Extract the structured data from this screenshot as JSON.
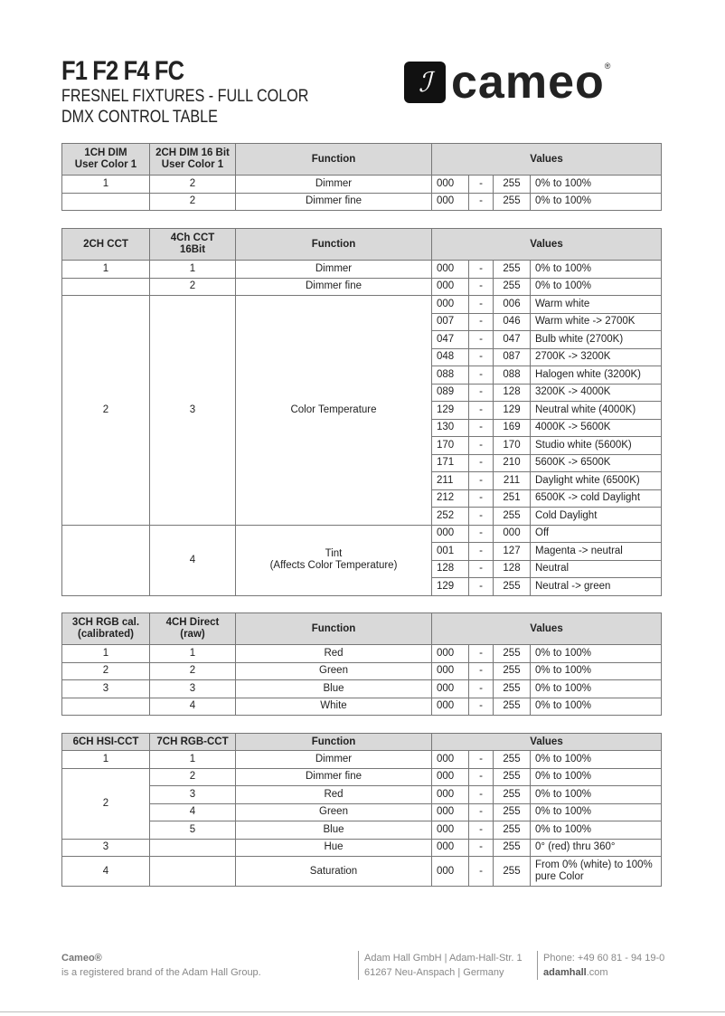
{
  "header": {
    "title": "F1 F2 F4 FC",
    "subtitle1": "FRESNEL FIXTURES - FULL COLOR",
    "subtitle2": "DMX CONTROL TABLE",
    "logo_text": "cameo"
  },
  "tables": [
    {
      "headers": [
        "1CH DIM\nUser Color 1",
        "2CH DIM 16 Bit\nUser Color 1",
        "Function",
        "Values"
      ],
      "rows": [
        {
          "c1": "1",
          "c2": "2",
          "fn": "Dimmer",
          "from": "000",
          "to": "255",
          "desc": "0% to 100%"
        },
        {
          "c1": "",
          "c2": "2",
          "fn": "Dimmer fine",
          "from": "000",
          "to": "255",
          "desc": "0% to 100%"
        }
      ]
    },
    {
      "headers": [
        "2CH CCT",
        "4Ch CCT\n16Bit",
        "Function",
        "Values"
      ],
      "rows": [
        {
          "c1": "1",
          "c2": "1",
          "fn": "Dimmer",
          "from": "000",
          "to": "255",
          "desc": "0% to 100%"
        },
        {
          "c1": "",
          "c2": "2",
          "fn": "Dimmer fine",
          "from": "000",
          "to": "255",
          "desc": "0% to 100%"
        },
        {
          "c1": "2",
          "c2": "3",
          "fn": "Color Temperature",
          "span": 13,
          "from": "000",
          "to": "006",
          "desc": "Warm white"
        },
        {
          "from": "007",
          "to": "046",
          "desc": "Warm white -> 2700K"
        },
        {
          "from": "047",
          "to": "047",
          "desc": "Bulb white (2700K)"
        },
        {
          "from": "048",
          "to": "087",
          "desc": "2700K -> 3200K"
        },
        {
          "from": "088",
          "to": "088",
          "desc": "Halogen white (3200K)"
        },
        {
          "from": "089",
          "to": "128",
          "desc": "3200K -> 4000K"
        },
        {
          "from": "129",
          "to": "129",
          "desc": "Neutral white (4000K)"
        },
        {
          "from": "130",
          "to": "169",
          "desc": "4000K -> 5600K"
        },
        {
          "from": "170",
          "to": "170",
          "desc": "Studio white (5600K)"
        },
        {
          "from": "171",
          "to": "210",
          "desc": "5600K -> 6500K"
        },
        {
          "from": "211",
          "to": "211",
          "desc": "Daylight white (6500K)"
        },
        {
          "from": "212",
          "to": "251",
          "desc": "6500K -> cold Daylight"
        },
        {
          "from": "252",
          "to": "255",
          "desc": "Cold Daylight"
        },
        {
          "c1": "",
          "c2": "4",
          "fn": "Tint\n(Affects Color Temperature)",
          "span": 4,
          "from": "000",
          "to": "000",
          "desc": "Off"
        },
        {
          "from": "001",
          "to": "127",
          "desc": "Magenta -> neutral"
        },
        {
          "from": "128",
          "to": "128",
          "desc": "Neutral"
        },
        {
          "from": "129",
          "to": "255",
          "desc": "Neutral -> green"
        }
      ]
    },
    {
      "headers": [
        "3CH RGB cal.\n(calibrated)",
        "4CH Direct\n(raw)",
        "Function",
        "Values"
      ],
      "rows": [
        {
          "c1": "1",
          "c2": "1",
          "fn": "Red",
          "from": "000",
          "to": "255",
          "desc": "0% to 100%"
        },
        {
          "c1": "2",
          "c2": "2",
          "fn": "Green",
          "from": "000",
          "to": "255",
          "desc": "0% to 100%"
        },
        {
          "c1": "3",
          "c2": "3",
          "fn": "Blue",
          "from": "000",
          "to": "255",
          "desc": "0% to 100%"
        },
        {
          "c1": "",
          "c2": "4",
          "fn": "White",
          "from": "000",
          "to": "255",
          "desc": "0% to 100%"
        }
      ]
    },
    {
      "headers": [
        "6CH HSI-CCT",
        "7CH RGB-CCT",
        "Function",
        "Values"
      ],
      "short": true,
      "rows": [
        {
          "c1": "1",
          "c2": "1",
          "fn": "Dimmer",
          "from": "000",
          "to": "255",
          "desc": "0% to 100%"
        },
        {
          "c1": "2",
          "c1span": 4,
          "c2": "2",
          "fn": "Dimmer fine",
          "from": "000",
          "to": "255",
          "desc": "0% to 100%"
        },
        {
          "c2": "3",
          "fn": "Red",
          "from": "000",
          "to": "255",
          "desc": "0% to 100%"
        },
        {
          "c2": "4",
          "fn": "Green",
          "from": "000",
          "to": "255",
          "desc": "0% to 100%"
        },
        {
          "c2": "5",
          "fn": "Blue",
          "from": "000",
          "to": "255",
          "desc": "0% to 100%"
        },
        {
          "c1": "3",
          "c2": "",
          "fn": "Hue",
          "from": "000",
          "to": "255",
          "desc": "0° (red) thru 360°"
        },
        {
          "c1": "4",
          "c2": "",
          "fn": "Saturation",
          "from": "000",
          "to": "255",
          "desc": "From 0% (white) to 100%\npure Color",
          "tall": true
        }
      ]
    }
  ],
  "dash": "-",
  "footer": {
    "brand": "Cameo®",
    "brand_note": "is a registered brand of the Adam Hall Group.",
    "addr1": "Adam Hall GmbH | Adam-Hall-Str. 1",
    "addr2": "61267 Neu-Anspach | Germany",
    "phone": "Phone: +49 60 81 - 94 19-0",
    "web_bold": "adamhall",
    "web_rest": ".com"
  }
}
